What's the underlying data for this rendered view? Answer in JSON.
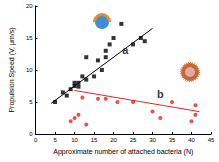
{
  "chart_data": {
    "type": "scatter",
    "x_label": "Approximate number of attached bacteria (N)",
    "y_label": "Propulsion Speed (V, μm/s)",
    "xlim": [
      0,
      45
    ],
    "xticks": [
      0,
      5,
      10,
      15,
      20,
      25,
      30,
      35,
      40,
      45
    ],
    "ylim": [
      0,
      20
    ],
    "yticks": [
      0,
      5,
      10,
      15,
      20
    ],
    "grid": false,
    "series": [
      {
        "type": "scatter",
        "color": "#000000",
        "marker": "square",
        "x": [
          5,
          7,
          8,
          9,
          10,
          10,
          11,
          11,
          12,
          13,
          13,
          15,
          16,
          17,
          18,
          18,
          19,
          20,
          22,
          25,
          27,
          28
        ],
        "values": [
          5,
          6.5,
          6,
          7,
          7.5,
          8,
          8,
          7.4,
          9,
          8.5,
          12,
          9,
          11.5,
          10,
          12,
          13,
          14,
          15,
          17.2,
          14,
          15,
          14.5
        ]
      },
      {
        "type": "line",
        "color": "#000000",
        "line_style": "solid",
        "x": [
          4,
          30
        ],
        "values": [
          4.8,
          16.5
        ]
      },
      {
        "type": "scatter",
        "color": "#e8231f",
        "marker": "circle",
        "x": [
          9,
          10,
          11,
          12,
          13,
          16,
          18,
          21,
          25,
          30,
          32,
          35,
          40,
          41,
          41
        ],
        "values": [
          2,
          2.5,
          3,
          5.7,
          1.5,
          5.5,
          5.5,
          5,
          5,
          3.5,
          2.5,
          5,
          2,
          4.5,
          3
        ]
      },
      {
        "type": "line",
        "color": "#e8231f",
        "line_style": "solid",
        "x": [
          10,
          42
        ],
        "values": [
          6.8,
          3.5
        ]
      }
    ],
    "annotations": [
      {
        "text": "a",
        "x": 23,
        "y": 13.2
      },
      {
        "text": "b",
        "x": 32,
        "y": 6.3
      }
    ]
  }
}
